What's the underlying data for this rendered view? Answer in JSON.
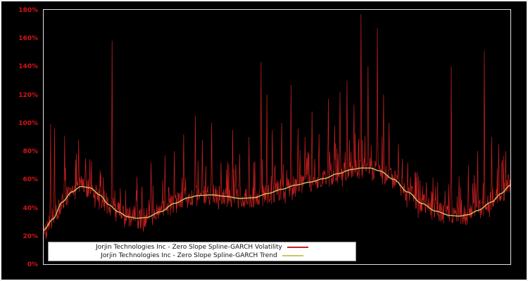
{
  "figure": {
    "background_color": "#000000",
    "frame_color": "#f2f2f2",
    "plot_border_color": "#e0e0e0"
  },
  "y_axis": {
    "tick_labels": [
      "0%",
      "20%",
      "40%",
      "60%",
      "80%",
      "100%",
      "120%",
      "140%",
      "160%",
      "180%"
    ],
    "tick_color": "#d41414",
    "min": 0,
    "max": 180
  },
  "x_axis": {
    "labels_visible": false
  },
  "chart_data": {
    "type": "line",
    "title": "",
    "xlabel": "",
    "ylabel": "",
    "ylim": [
      0,
      180
    ],
    "y_unit": "%",
    "grid": false,
    "background": "#000000",
    "legend_position": "bottom-left",
    "series": [
      {
        "name": "Jorjin Technologies Inc - Zero Slope Spline-GARCH Volatility",
        "color": "#cc2020",
        "style": "noisy"
      },
      {
        "name": "Jorjin Technologies Inc - Zero Slope Spline-GARCH Trend",
        "color": "#c8c864",
        "style": "smooth"
      }
    ],
    "trend_points": [
      [
        0,
        24
      ],
      [
        2,
        32
      ],
      [
        4,
        44
      ],
      [
        6,
        51
      ],
      [
        8,
        55
      ],
      [
        10,
        54
      ],
      [
        12,
        49
      ],
      [
        14,
        42
      ],
      [
        16,
        37
      ],
      [
        18,
        33.5
      ],
      [
        20,
        32.5
      ],
      [
        22,
        33
      ],
      [
        25,
        37
      ],
      [
        28,
        43
      ],
      [
        31,
        47
      ],
      [
        33,
        48.5
      ],
      [
        36,
        49
      ],
      [
        39,
        48
      ],
      [
        42,
        46.5
      ],
      [
        45,
        47
      ],
      [
        48,
        50
      ],
      [
        51,
        53
      ],
      [
        54,
        56
      ],
      [
        57,
        58
      ],
      [
        60,
        60.5
      ],
      [
        63,
        64
      ],
      [
        66,
        67
      ],
      [
        68,
        68
      ],
      [
        70,
        68
      ],
      [
        72,
        66
      ],
      [
        75,
        60
      ],
      [
        78,
        51
      ],
      [
        81,
        43
      ],
      [
        84,
        37.5
      ],
      [
        87,
        34.5
      ],
      [
        89,
        34
      ],
      [
        91,
        35
      ],
      [
        93,
        38
      ],
      [
        96,
        44
      ],
      [
        98,
        50
      ],
      [
        100,
        56
      ]
    ],
    "spikes": [
      [
        1.5,
        99
      ],
      [
        2.3,
        96
      ],
      [
        4.5,
        91
      ],
      [
        7.5,
        88
      ],
      [
        9,
        75
      ],
      [
        14.7,
        158
      ],
      [
        20,
        62
      ],
      [
        23,
        72
      ],
      [
        26,
        77
      ],
      [
        28,
        80
      ],
      [
        30,
        92
      ],
      [
        32.5,
        105
      ],
      [
        34,
        88
      ],
      [
        36,
        100
      ],
      [
        38,
        72
      ],
      [
        40.5,
        95
      ],
      [
        42,
        78
      ],
      [
        44,
        90
      ],
      [
        46.6,
        143
      ],
      [
        47.8,
        120
      ],
      [
        49,
        95
      ],
      [
        51,
        100
      ],
      [
        53,
        127
      ],
      [
        54.5,
        96
      ],
      [
        56,
        90
      ],
      [
        57.5,
        108
      ],
      [
        59,
        92
      ],
      [
        61,
        117
      ],
      [
        62.3,
        98
      ],
      [
        63.5,
        122
      ],
      [
        65,
        130
      ],
      [
        66.5,
        113
      ],
      [
        68,
        177
      ],
      [
        69.5,
        140
      ],
      [
        71.5,
        167
      ],
      [
        72.8,
        120
      ],
      [
        74,
        100
      ],
      [
        76,
        85
      ],
      [
        78,
        72
      ],
      [
        80,
        65
      ],
      [
        82,
        58
      ],
      [
        84,
        55
      ],
      [
        86,
        52
      ],
      [
        87.3,
        140
      ],
      [
        89,
        62
      ],
      [
        91,
        70
      ],
      [
        93,
        80
      ],
      [
        94.4,
        151
      ],
      [
        96,
        90
      ],
      [
        97.5,
        85
      ],
      [
        99,
        80
      ]
    ],
    "noise": {
      "seed": 42,
      "samples": 1200,
      "jitter": 15,
      "burst_prob": 0.16,
      "burst_max": 26
    }
  }
}
